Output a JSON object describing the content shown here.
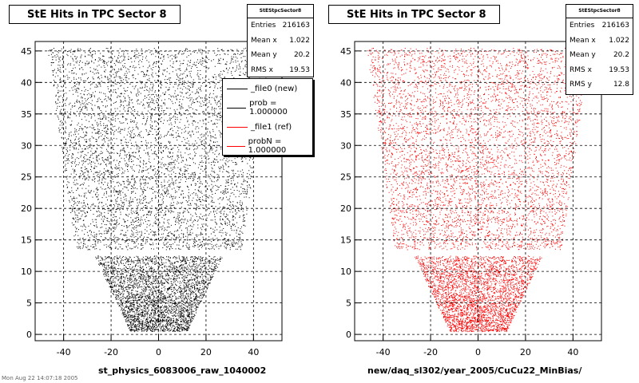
{
  "chart_data": [
    {
      "type": "scatter",
      "title": "StE Hits in TPC Sector 8",
      "xlabel": "st_physics_6083006_raw_1040002",
      "ylabel": "",
      "xlim": [
        -52,
        52
      ],
      "ylim": [
        -1,
        46.5
      ],
      "xticks": [
        -40,
        -20,
        0,
        20,
        40
      ],
      "yticks": [
        0,
        5,
        10,
        15,
        20,
        25,
        30,
        35,
        40,
        45
      ],
      "xtick_labels": [
        "-40",
        "-20",
        "0",
        "20",
        "40"
      ],
      "ytick_labels": [
        "0",
        "5",
        "10",
        "15",
        "20",
        "25",
        "30",
        "35",
        "40",
        "45"
      ],
      "grid": true,
      "color": "#000000",
      "region": {
        "outer_rows": [
          13.5,
          45.5
        ],
        "outer_half_width_at": [
          [
            13.5,
            35
          ],
          [
            45.5,
            47
          ]
        ],
        "inner_rows": [
          0.5,
          12.5
        ],
        "inner_half_width_at": [
          [
            0.5,
            12
          ],
          [
            12.5,
            27
          ]
        ]
      },
      "stats": {
        "name": "StEStpcSector8",
        "rows": [
          {
            "label": "Entries",
            "value": "216163"
          },
          {
            "label": "Mean x",
            "value": "1.022"
          },
          {
            "label": "Mean y",
            "value": "20.2"
          },
          {
            "label": "RMS x",
            "value": "19.53"
          }
        ]
      },
      "legend": [
        {
          "label": "_file0 (new)",
          "color": "#000000"
        },
        {
          "label": "prob = 1.000000",
          "color": "#000000"
        },
        {
          "label": "_file1 (ref)",
          "color": "#ff0000"
        },
        {
          "label": "probN = 1.000000",
          "color": "#ff0000"
        }
      ]
    },
    {
      "type": "scatter",
      "title": "StE Hits in TPC Sector 8",
      "xlabel": "new/daq_sl302/year_2005/CuCu22_MinBias/",
      "ylabel": "",
      "xlim": [
        -52,
        52
      ],
      "ylim": [
        -1,
        46.5
      ],
      "xticks": [
        -40,
        -20,
        0,
        20,
        40
      ],
      "yticks": [
        0,
        5,
        10,
        15,
        20,
        25,
        30,
        35,
        40,
        45
      ],
      "xtick_labels": [
        "-40",
        "-20",
        "0",
        "20",
        "40"
      ],
      "ytick_labels": [
        "0",
        "5",
        "10",
        "15",
        "20",
        "25",
        "30",
        "35",
        "40",
        "45"
      ],
      "grid": true,
      "color": "#ff0000",
      "stats": {
        "name": "StEStpcSector8",
        "rows": [
          {
            "label": "Entries",
            "value": "216163"
          },
          {
            "label": "Mean x",
            "value": "1.022"
          },
          {
            "label": "Mean y",
            "value": "20.2"
          },
          {
            "label": "RMS x",
            "value": "19.53"
          },
          {
            "label": "RMS y",
            "value": "12.8"
          }
        ]
      }
    }
  ],
  "footer": "Mon Aug 22 14:07:18 2005"
}
